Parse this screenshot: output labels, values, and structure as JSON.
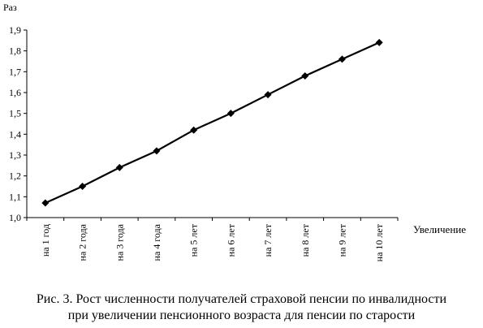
{
  "chart_data": {
    "type": "line",
    "ylabel": "Раз",
    "xlabel": "Увеличение",
    "categories": [
      "на 1 год",
      "на 2 года",
      "на 3 года",
      "на 4 года",
      "на 5 лет",
      "на 6 лет",
      "на 7 лет",
      "на 8 лет",
      "на 9 лет",
      "на 10 лет"
    ],
    "values": [
      1.07,
      1.15,
      1.24,
      1.32,
      1.42,
      1.5,
      1.59,
      1.68,
      1.76,
      1.84
    ],
    "ylim": [
      1.0,
      1.9
    ],
    "yticks": [
      "1,0",
      "1,1",
      "1,2",
      "1,3",
      "1,4",
      "1,5",
      "1,6",
      "1,7",
      "1,8",
      "1,9"
    ],
    "grid": false,
    "legend": "none",
    "marker": "diamond",
    "color": "#000000"
  },
  "caption": {
    "line1": "Рис. 3. Рост численности получателей страховой пенсии по инвалидности",
    "line2": "при увеличении пенсионного возраста для пенсии по старости"
  }
}
